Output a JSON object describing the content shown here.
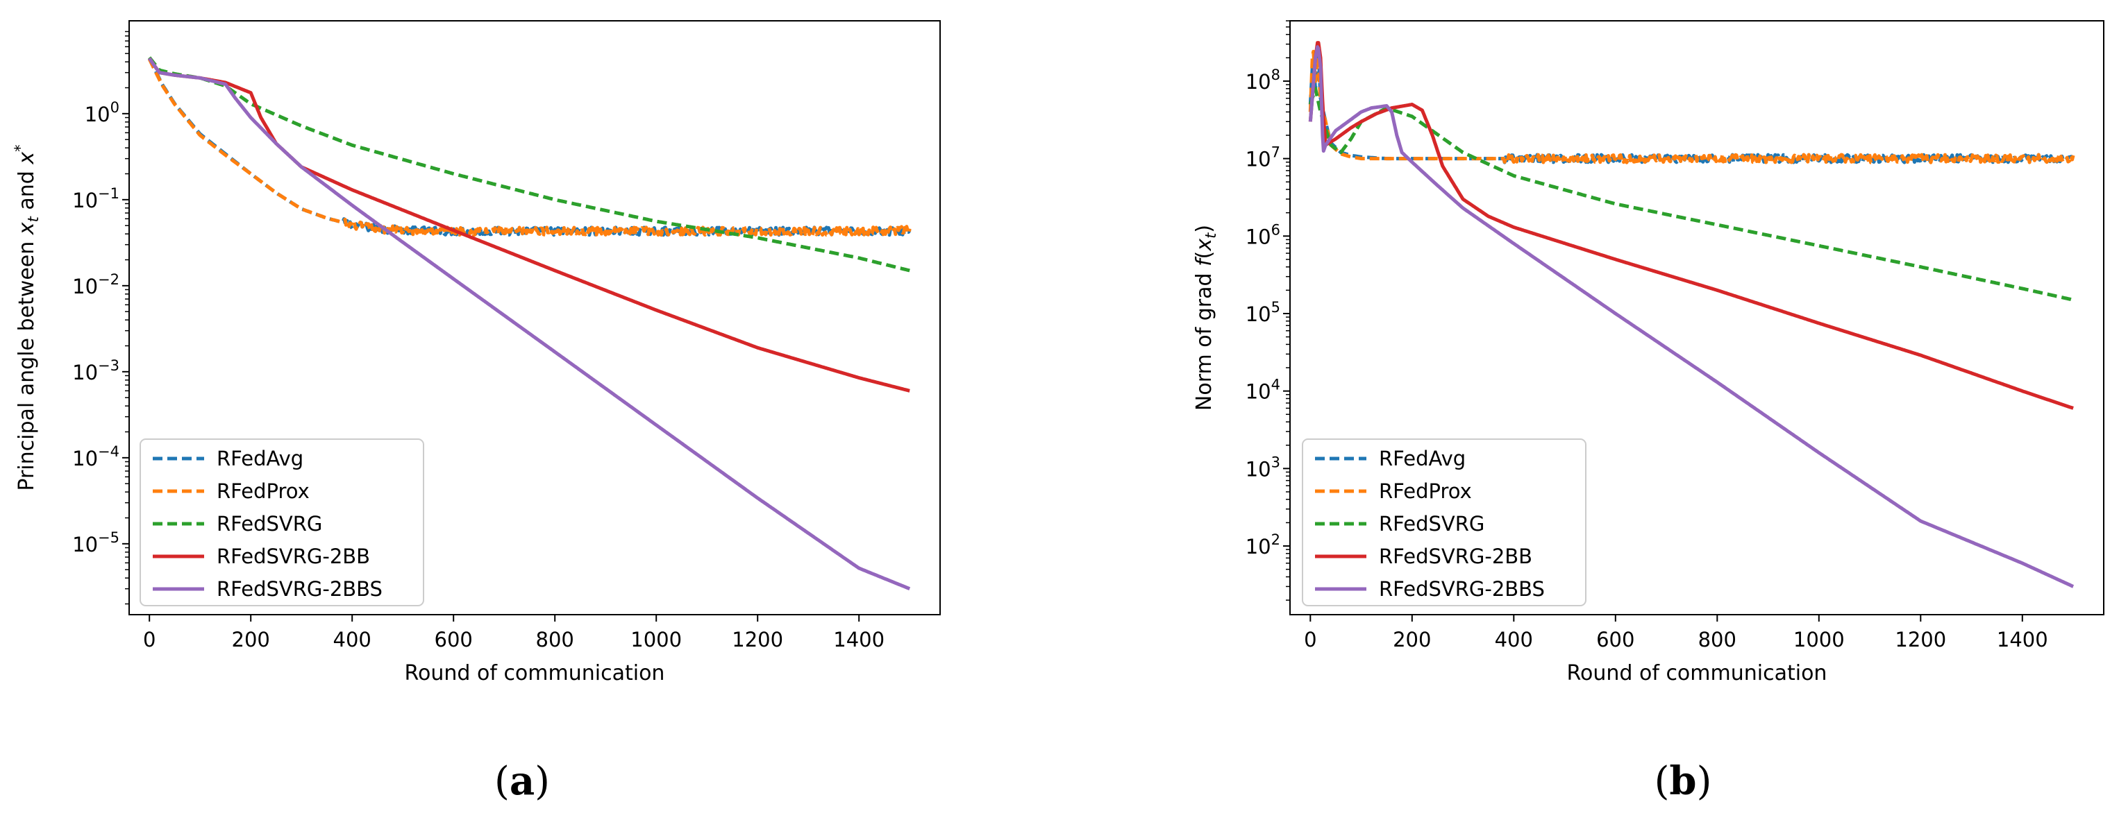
{
  "chart_data": [
    {
      "type": "line",
      "panel_label": {
        "open": "(",
        "letter": "a",
        "close": ")"
      },
      "xlabel": "Round of communication",
      "ylabel": {
        "prefix": "Principal angle between ",
        "v1": "x",
        "s1": "t",
        "mid": " and ",
        "v2": "x",
        "s2": "*"
      },
      "yscale": "log",
      "xlim": [
        -40,
        1560
      ],
      "ylim": [
        1.5e-06,
        12
      ],
      "xticks": [
        0,
        200,
        400,
        600,
        800,
        1000,
        1200,
        1400
      ],
      "xtick_labels": [
        "0",
        "200",
        "400",
        "600",
        "800",
        "1000",
        "1200",
        "1400"
      ],
      "yticks": [
        1e-05,
        0.0001,
        0.001,
        0.01,
        0.1,
        1
      ],
      "ytick_labels": [
        {
          "base": "10",
          "exp": "−5"
        },
        {
          "base": "10",
          "exp": "−4"
        },
        {
          "base": "10",
          "exp": "−3"
        },
        {
          "base": "10",
          "exp": "−2"
        },
        {
          "base": "10",
          "exp": "−1"
        },
        {
          "base": "10",
          "exp": "0"
        }
      ],
      "legend": {
        "location": "lower-left",
        "entries": [
          "RFedAvg",
          "RFedProx",
          "RFedSVRG",
          "RFedSVRG-2BB",
          "RFedSVRG-2BBS"
        ]
      },
      "series": [
        {
          "name": "RFedAvg",
          "color": "#1f77b4",
          "style": "dashed",
          "noise": 0.045,
          "x": [
            0,
            25,
            50,
            100,
            150,
            200,
            250,
            300,
            350,
            400,
            450,
            500,
            600,
            800,
            1000,
            1200,
            1400,
            1500
          ],
          "y": [
            4.4,
            2.2,
            1.3,
            0.58,
            0.34,
            0.2,
            0.12,
            0.078,
            0.061,
            0.051,
            0.046,
            0.044,
            0.043,
            0.043,
            0.043,
            0.043,
            0.043,
            0.043
          ]
        },
        {
          "name": "RFedProx",
          "color": "#ff7f0e",
          "style": "dashed",
          "noise": 0.045,
          "x": [
            0,
            25,
            50,
            100,
            150,
            200,
            250,
            300,
            350,
            400,
            450,
            500,
            600,
            800,
            1000,
            1200,
            1400,
            1500
          ],
          "y": [
            4.3,
            2.15,
            1.28,
            0.56,
            0.33,
            0.2,
            0.12,
            0.078,
            0.061,
            0.051,
            0.046,
            0.044,
            0.043,
            0.043,
            0.043,
            0.043,
            0.043,
            0.044
          ]
        },
        {
          "name": "RFedSVRG",
          "color": "#2ca02c",
          "style": "dashed",
          "noise": 0,
          "x": [
            0,
            20,
            50,
            100,
            150,
            200,
            300,
            400,
            600,
            800,
            1000,
            1200,
            1400,
            1500
          ],
          "y": [
            4.5,
            3.2,
            2.9,
            2.6,
            2.1,
            1.3,
            0.72,
            0.43,
            0.2,
            0.1,
            0.056,
            0.036,
            0.021,
            0.015
          ]
        },
        {
          "name": "RFedSVRG-2BB",
          "color": "#d62728",
          "style": "solid",
          "noise": 0,
          "x": [
            0,
            10,
            20,
            50,
            100,
            150,
            200,
            220,
            250,
            300,
            400,
            600,
            800,
            1000,
            1200,
            1400,
            1500
          ],
          "y": [
            4.4,
            3.6,
            3.0,
            2.8,
            2.6,
            2.3,
            1.75,
            0.9,
            0.45,
            0.24,
            0.13,
            0.044,
            0.015,
            0.0052,
            0.0019,
            0.00085,
            0.0006
          ]
        },
        {
          "name": "RFedSVRG-2BBS",
          "color": "#9467bd",
          "style": "solid",
          "noise": 0,
          "x": [
            0,
            10,
            20,
            50,
            100,
            150,
            170,
            200,
            250,
            300,
            400,
            500,
            600,
            800,
            1000,
            1200,
            1400,
            1500
          ],
          "y": [
            4.4,
            3.6,
            3.0,
            2.8,
            2.6,
            2.2,
            1.5,
            0.9,
            0.45,
            0.24,
            0.086,
            0.032,
            0.012,
            0.0017,
            0.00024,
            3.4e-05,
            5.2e-06,
            3e-06
          ]
        }
      ]
    },
    {
      "type": "line",
      "panel_label": {
        "open": "(",
        "letter": "b",
        "close": ")"
      },
      "xlabel": "Round of communication",
      "ylabel": {
        "prefix": "Norm of grad ",
        "f": "f",
        "paren_open": "(",
        "v": "x",
        "s": "t",
        "paren_close": ")"
      },
      "yscale": "log",
      "xlim": [
        -40,
        1560
      ],
      "ylim": [
        13,
        600000000.0
      ],
      "xticks": [
        0,
        200,
        400,
        600,
        800,
        1000,
        1200,
        1400
      ],
      "xtick_labels": [
        "0",
        "200",
        "400",
        "600",
        "800",
        "1000",
        "1200",
        "1400"
      ],
      "yticks": [
        100.0,
        1000.0,
        10000.0,
        100000.0,
        1000000.0,
        10000000.0,
        100000000.0
      ],
      "ytick_labels": [
        {
          "base": "10",
          "exp": "2"
        },
        {
          "base": "10",
          "exp": "3"
        },
        {
          "base": "10",
          "exp": "4"
        },
        {
          "base": "10",
          "exp": "5"
        },
        {
          "base": "10",
          "exp": "6"
        },
        {
          "base": "10",
          "exp": "7"
        },
        {
          "base": "10",
          "exp": "8"
        }
      ],
      "legend": {
        "location": "lower-left",
        "entries": [
          "RFedAvg",
          "RFedProx",
          "RFedSVRG",
          "RFedSVRG-2BB",
          "RFedSVRG-2BBS"
        ]
      },
      "series": [
        {
          "name": "RFedAvg",
          "color": "#1f77b4",
          "style": "dashed",
          "noise": 0.05,
          "x": [
            0,
            5,
            10,
            15,
            20,
            30,
            40,
            60,
            80,
            100,
            150,
            200,
            400,
            800,
            1200,
            1500
          ],
          "y": [
            50000000.0,
            200000000.0,
            80000000.0,
            300000000.0,
            60000000.0,
            30000000.0,
            16000000.0,
            12000000.0,
            11000000.0,
            10500000.0,
            10000000.0,
            10000000.0,
            10000000.0,
            10000000.0,
            10000000.0,
            10000000.0
          ]
        },
        {
          "name": "RFedProx",
          "color": "#ff7f0e",
          "style": "dashed",
          "noise": 0.05,
          "x": [
            0,
            5,
            10,
            15,
            20,
            30,
            40,
            60,
            80,
            100,
            150,
            200,
            400,
            800,
            1200,
            1500
          ],
          "y": [
            40000000.0,
            300000000.0,
            100000000.0,
            250000000.0,
            50000000.0,
            30000000.0,
            15000000.0,
            11500000.0,
            10500000.0,
            10000000.0,
            10000000.0,
            10000000.0,
            10000000.0,
            10000000.0,
            10000000.0,
            10000000.0
          ]
        },
        {
          "name": "RFedSVRG",
          "color": "#2ca02c",
          "style": "dashed",
          "noise": 0,
          "x": [
            0,
            10,
            20,
            40,
            60,
            80,
            100,
            150,
            200,
            300,
            400,
            600,
            800,
            1000,
            1200,
            1400,
            1500
          ],
          "y": [
            50000000.0,
            80000000.0,
            40000000.0,
            15000000.0,
            12000000.0,
            18000000.0,
            30000000.0,
            45000000.0,
            35000000.0,
            12000000.0,
            6000000.0,
            2600000.0,
            1400000.0,
            750000.0,
            400000.0,
            210000.0,
            150000.0
          ]
        },
        {
          "name": "RFedSVRG-2BB",
          "color": "#d62728",
          "style": "solid",
          "noise": 0,
          "x": [
            0,
            10,
            15,
            20,
            25,
            30,
            50,
            80,
            100,
            130,
            160,
            200,
            220,
            240,
            260,
            300,
            350,
            400,
            600,
            800,
            1000,
            1200,
            1400,
            1500
          ],
          "y": [
            30000000.0,
            200000000.0,
            350000000.0,
            200000000.0,
            40000000.0,
            15000000.0,
            18000000.0,
            25000000.0,
            30000000.0,
            38000000.0,
            45000000.0,
            50000000.0,
            42000000.0,
            20000000.0,
            8000000.0,
            3000000.0,
            1800000.0,
            1300000.0,
            500000.0,
            200000.0,
            75000.0,
            29000.0,
            10000.0,
            6000.0
          ]
        },
        {
          "name": "RFedSVRG-2BBS",
          "color": "#9467bd",
          "style": "solid",
          "noise": 0,
          "x": [
            0,
            10,
            15,
            20,
            25,
            30,
            50,
            80,
            100,
            120,
            150,
            160,
            170,
            180,
            200,
            250,
            300,
            400,
            600,
            800,
            1000,
            1200,
            1400,
            1500
          ],
          "y": [
            30000000.0,
            200000000.0,
            300000000.0,
            150000000.0,
            12000000.0,
            15000000.0,
            23000000.0,
            32000000.0,
            40000000.0,
            45000000.0,
            48000000.0,
            40000000.0,
            20000000.0,
            12000000.0,
            9000000.0,
            4500000.0,
            2300000.0,
            800000.0,
            100000.0,
            13000.0,
            1600.0,
            210.0,
            60,
            30
          ]
        }
      ]
    }
  ]
}
